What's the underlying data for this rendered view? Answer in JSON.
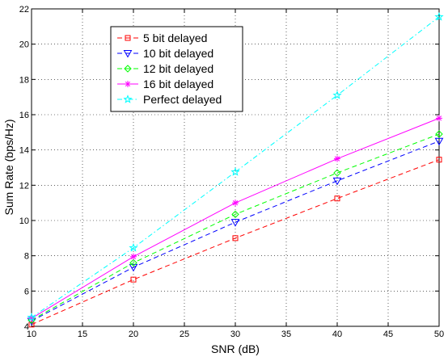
{
  "chart_data": {
    "type": "line",
    "title": "",
    "xlabel": "SNR (dB)",
    "ylabel": "Sum Rate (bps/Hz)",
    "xlim": [
      10,
      50
    ],
    "ylim": [
      4,
      22
    ],
    "xticks": [
      10,
      15,
      20,
      25,
      30,
      35,
      40,
      45,
      50
    ],
    "yticks": [
      4,
      6,
      8,
      10,
      12,
      14,
      16,
      18,
      20,
      22
    ],
    "grid": true,
    "legend_position": "top-left",
    "x": [
      10,
      20,
      30,
      40,
      50
    ],
    "series": [
      {
        "name": "5 bit delayed",
        "color": "#ff0000",
        "dash": "dashed",
        "marker": "square",
        "values": [
          4.1,
          6.65,
          9.0,
          11.25,
          13.45
        ]
      },
      {
        "name": "10 bit delayed",
        "color": "#0000ff",
        "dash": "dashed",
        "marker": "triangle-down",
        "values": [
          4.3,
          7.35,
          9.9,
          12.25,
          14.5
        ]
      },
      {
        "name": "12 bit delayed",
        "color": "#00ff00",
        "dash": "dashed",
        "marker": "diamond",
        "values": [
          4.35,
          7.6,
          10.35,
          12.7,
          14.9
        ]
      },
      {
        "name": "16 bit delayed",
        "color": "#ff00ff",
        "dash": "solid",
        "marker": "star",
        "values": [
          4.45,
          7.95,
          11.0,
          13.5,
          15.8
        ]
      },
      {
        "name": "Perfect delayed",
        "color": "#00ffff",
        "dash": "dashdot",
        "marker": "pentagram",
        "values": [
          4.5,
          8.45,
          12.75,
          17.1,
          21.55
        ]
      }
    ]
  }
}
